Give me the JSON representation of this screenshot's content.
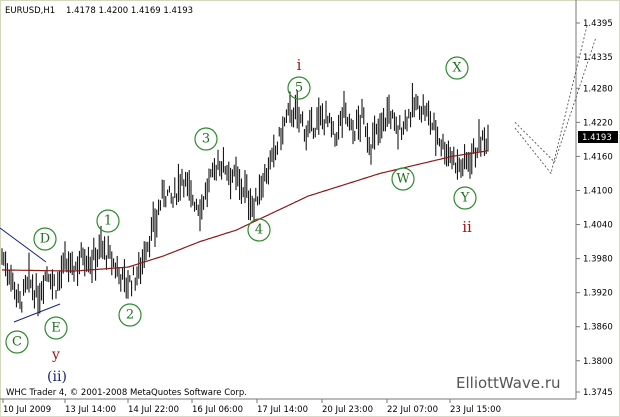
{
  "header": {
    "symbol_timeframe": "EURUSD,H1",
    "ohlc": "1.4178 1.4200 1.4169 1.4193"
  },
  "footer": {
    "copyright": "WHC Trader 4, © 2001-2008 MetaQuotes Software Corp.",
    "watermark": "ElliottWave.ru"
  },
  "price_axis": {
    "ticks": [
      "1.4395",
      "1.4335",
      "1.4280",
      "1.4220",
      "1.4160",
      "1.4100",
      "1.4040",
      "1.3980",
      "1.3920",
      "1.3860",
      "1.3800",
      "1.3745"
    ],
    "current_price": "1.4193"
  },
  "time_axis": {
    "ticks": [
      "10 Jul 2009",
      "13 Jul 14:00",
      "14 Jul 22:00",
      "16 Jul 06:00",
      "17 Jul 14:00",
      "20 Jul 23:00",
      "22 Jul 07:00",
      "23 Jul 15:00"
    ]
  },
  "wave_labels": {
    "C": "C",
    "D": "D",
    "E": "E",
    "one": "1",
    "two": "2",
    "three": "3",
    "four": "4",
    "five": "5",
    "W": "W",
    "X": "X",
    "Y": "Y",
    "y_small": "y",
    "ii_paren": "(ii)",
    "i_small": "i",
    "ii_small": "ii"
  },
  "colors": {
    "background": "#ffffff",
    "frame": "#d6dbc6",
    "bars": "#000000",
    "moving_average": "#8b1a1a",
    "wave_circle": "#2e8b2e",
    "wave_text": "#1f6f1f",
    "roman_red": "#a0161a",
    "roman_blue": "#1a237e",
    "triangle_line": "#1a237e",
    "price_box": "#000000"
  },
  "chart_data": {
    "type": "ohlc",
    "ylim": [
      1.3745,
      1.4395
    ],
    "close_path": [
      [
        0,
        1.3985
      ],
      [
        5,
        1.395
      ],
      [
        10,
        1.39
      ],
      [
        15,
        1.394
      ],
      [
        20,
        1.391
      ],
      [
        25,
        1.396
      ],
      [
        30,
        1.393
      ],
      [
        35,
        1.397
      ],
      [
        40,
        1.396
      ],
      [
        45,
        1.399
      ],
      [
        50,
        1.3975
      ],
      [
        55,
        1.4
      ],
      [
        60,
        1.398
      ],
      [
        65,
        1.3955
      ],
      [
        70,
        1.3935
      ],
      [
        75,
        1.395
      ],
      [
        80,
        1.4
      ],
      [
        85,
        1.404
      ],
      [
        90,
        1.41
      ],
      [
        95,
        1.408
      ],
      [
        100,
        1.413
      ],
      [
        105,
        1.409
      ],
      [
        110,
        1.407
      ],
      [
        115,
        1.411
      ],
      [
        120,
        1.415
      ],
      [
        125,
        1.414
      ],
      [
        130,
        1.412
      ],
      [
        135,
        1.41
      ],
      [
        140,
        1.407
      ],
      [
        145,
        1.412
      ],
      [
        150,
        1.415
      ],
      [
        155,
        1.42
      ],
      [
        160,
        1.424
      ],
      [
        165,
        1.423
      ],
      [
        170,
        1.42
      ],
      [
        175,
        1.422
      ],
      [
        180,
        1.423
      ],
      [
        185,
        1.419
      ],
      [
        190,
        1.424
      ],
      [
        195,
        1.42
      ],
      [
        200,
        1.423
      ],
      [
        205,
        1.418
      ],
      [
        210,
        1.421
      ],
      [
        215,
        1.424
      ],
      [
        220,
        1.42
      ],
      [
        225,
        1.423
      ],
      [
        230,
        1.425
      ],
      [
        235,
        1.424
      ],
      [
        240,
        1.421
      ],
      [
        245,
        1.418
      ],
      [
        250,
        1.416
      ],
      [
        255,
        1.414
      ],
      [
        260,
        1.416
      ],
      [
        265,
        1.418
      ],
      [
        270,
        1.4193
      ]
    ],
    "moving_average": [
      [
        0,
        1.396
      ],
      [
        40,
        1.3958
      ],
      [
        70,
        1.3965
      ],
      [
        90,
        1.3985
      ],
      [
        110,
        1.401
      ],
      [
        130,
        1.403
      ],
      [
        150,
        1.406
      ],
      [
        170,
        1.409
      ],
      [
        190,
        1.411
      ],
      [
        210,
        1.413
      ],
      [
        230,
        1.4145
      ],
      [
        250,
        1.416
      ],
      [
        270,
        1.417
      ]
    ],
    "projection": [
      [
        [
          285,
          1.421
        ],
        [
          305,
          1.413
        ],
        [
          325,
          1.439
        ]
      ],
      [
        [
          285,
          1.422
        ],
        [
          307,
          1.415
        ],
        [
          330,
          1.437
        ]
      ]
    ]
  }
}
